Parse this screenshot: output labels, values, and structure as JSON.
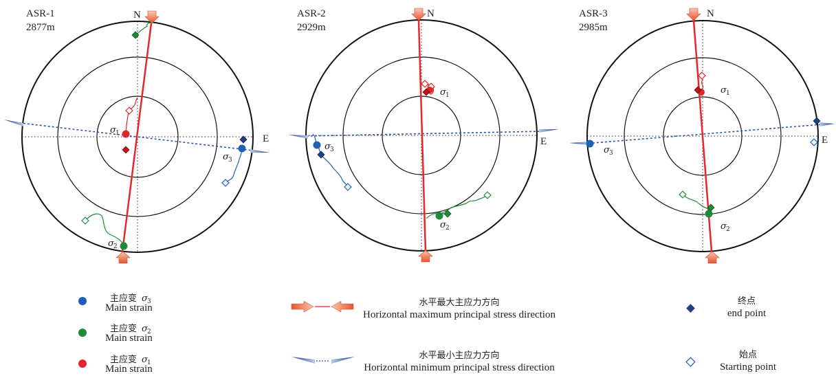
{
  "panels": [
    {
      "title": "ASR-1",
      "depth": "2877m",
      "north_label": "N",
      "east_label": "E",
      "sigma_symbol": "σ",
      "sigma1_sub": "1",
      "sigma2_sub": "2",
      "sigma3_sub": "3"
    },
    {
      "title": "ASR-2",
      "depth": "2929m",
      "north_label": "N",
      "east_label": "E",
      "sigma_symbol": "σ",
      "sigma1_sub": "1",
      "sigma2_sub": "2",
      "sigma3_sub": "3"
    },
    {
      "title": "ASR-3",
      "depth": "2985m",
      "north_label": "N",
      "east_label": "E",
      "sigma_symbol": "σ",
      "sigma1_sub": "1",
      "sigma2_sub": "2",
      "sigma3_sub": "3"
    }
  ],
  "legend": {
    "sigma3": {
      "zh": "主应变",
      "symbol": "σ",
      "sub": "3",
      "en": "Main strain",
      "color": "#1f5fb5"
    },
    "sigma2": {
      "zh": "主应变",
      "symbol": "σ",
      "sub": "2",
      "en": "Main strain",
      "color": "#1e8a3a"
    },
    "sigma1": {
      "zh": "主应变",
      "symbol": "σ",
      "sub": "1",
      "en": "Main strain",
      "color": "#e0262a"
    },
    "shmax": {
      "zh": "水平最大主应力方向",
      "en": "Horizontal  maximum principal stress direction",
      "color": "#e8272a"
    },
    "shmin": {
      "zh": "水平最小主应力方向",
      "en": "Horizontal  minimum principal stress direction",
      "color": "#2a55a8"
    },
    "end_point": {
      "zh": "终点",
      "en": "end point",
      "color": "#1f3f80"
    },
    "start_point": {
      "zh": "始点",
      "en": "Starting point",
      "color": "#1f5fb5"
    }
  },
  "colors": {
    "sigma1": "#e0262a",
    "sigma2": "#1e8a3a",
    "sigma3": "#1f5fb5",
    "shmax_line": "#e8272a",
    "shmin_line": "#2a55a8",
    "arrow_fill": "#f4a582"
  }
}
